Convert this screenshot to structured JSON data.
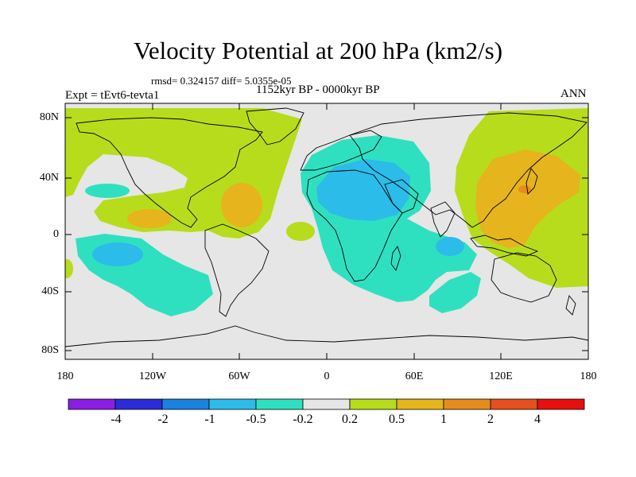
{
  "title": "Velocity Potential at 200 hPa (km2/s)",
  "stats": "rmsd= 0.324157 diff= 5.0355e-05",
  "period": "1152kyr BP - 0000kyr BP",
  "experiment": "Expt = tEvt6-tevta1",
  "season": "ANN",
  "map": {
    "lat_labels": [
      "80N",
      "40N",
      "0",
      "40S",
      "80S"
    ],
    "lon_labels": [
      "180",
      "120W",
      "60W",
      "0",
      "60E",
      "120E",
      "180"
    ]
  },
  "colorbar": {
    "colors": [
      "#8a1ee6",
      "#2b2bd8",
      "#1a82e0",
      "#2bbcea",
      "#2fe0c0",
      "#e6e6e6",
      "#b7dc1c",
      "#e6b41c",
      "#e68c1c",
      "#e6501c",
      "#e61010"
    ],
    "labels": [
      "-4",
      "-2",
      "-1",
      "-0.5",
      "-0.2",
      "0.2",
      "0.5",
      "1",
      "2",
      "4"
    ]
  }
}
